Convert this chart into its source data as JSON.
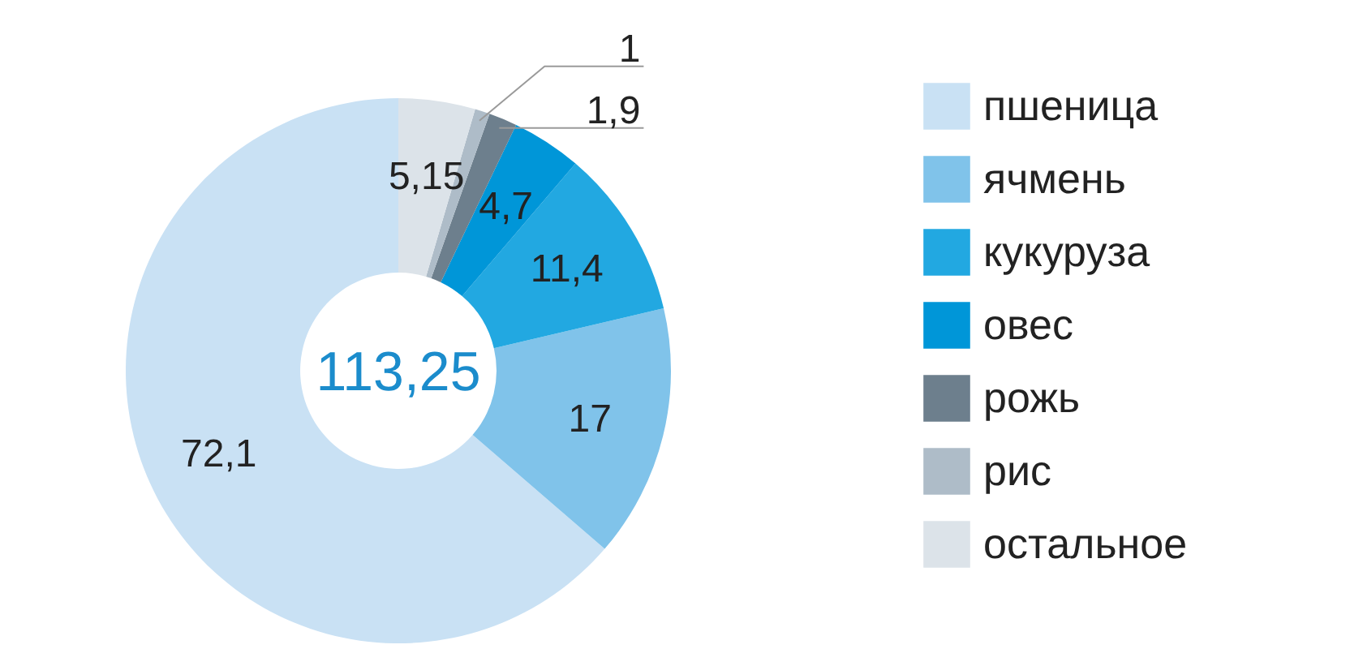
{
  "chart_data": {
    "type": "donut",
    "categories": [
      "пшеница",
      "ячмень",
      "кукуруза",
      "овес",
      "рожь",
      "рис",
      "остальное"
    ],
    "values": [
      72.1,
      17,
      11.4,
      4.7,
      1.9,
      1,
      5.15
    ],
    "colors": [
      "#c9e1f4",
      "#80c3ea",
      "#22a8e1",
      "#0096d8",
      "#6d7f8d",
      "#aebcc8",
      "#dce3e9"
    ],
    "value_labels": [
      "72,1",
      "17",
      "11,4",
      "4,7",
      "1,9",
      "1",
      "5,15"
    ],
    "annotations": [
      "113,25"
    ],
    "legend": "right"
  }
}
